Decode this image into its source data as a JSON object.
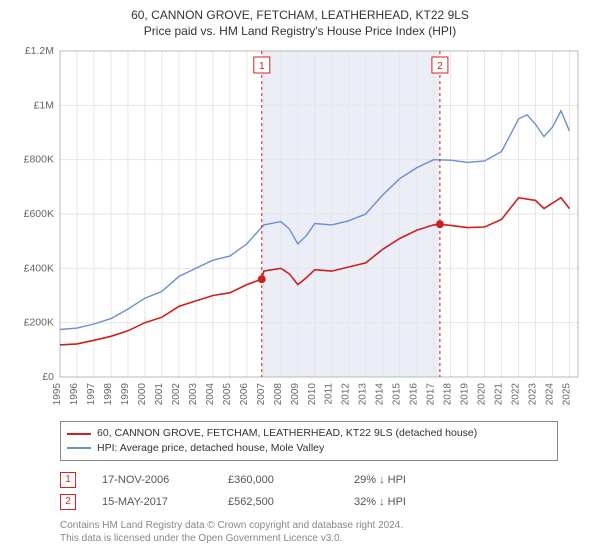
{
  "title": "60, CANNON GROVE, FETCHAM, LEATHERHEAD, KT22 9LS",
  "subtitle": "Price paid vs. HM Land Registry's House Price Index (HPI)",
  "chart": {
    "type": "line",
    "background_color": "#ffffff",
    "grid_color": "#e6e6e6",
    "axis_color": "#b8b8b8",
    "highlight_band_color": "#ebedf7",
    "highlight_start_year": 2006.9,
    "highlight_end_year": 2017.35,
    "ylim": [
      0,
      1200000
    ],
    "ytick_step": 200000,
    "ytick_labels": [
      "£0",
      "£200K",
      "£400K",
      "£600K",
      "£800K",
      "£1M",
      "£1.2M"
    ],
    "xlim": [
      1995,
      2025.5
    ],
    "xticks": [
      1995,
      1996,
      1997,
      1998,
      1999,
      2000,
      2001,
      2002,
      2003,
      2004,
      2005,
      2006,
      2007,
      2008,
      2009,
      2010,
      2011,
      2012,
      2013,
      2014,
      2015,
      2016,
      2017,
      2018,
      2019,
      2020,
      2021,
      2022,
      2023,
      2024,
      2025
    ],
    "label_fontsize": 10.5,
    "series": [
      {
        "name": "property",
        "color": "#d01f1f",
        "width": 1.6,
        "legend": "60, CANNON GROVE, FETCHAM, LEATHERHEAD, KT22 9LS (detached house)",
        "points": [
          [
            1995,
            118000
          ],
          [
            1996,
            122000
          ],
          [
            1997,
            135000
          ],
          [
            1998,
            150000
          ],
          [
            1999,
            170000
          ],
          [
            2000,
            200000
          ],
          [
            2001,
            220000
          ],
          [
            2002,
            260000
          ],
          [
            2003,
            280000
          ],
          [
            2004,
            300000
          ],
          [
            2005,
            310000
          ],
          [
            2006,
            340000
          ],
          [
            2006.88,
            360000
          ],
          [
            2007,
            390000
          ],
          [
            2008,
            400000
          ],
          [
            2008.5,
            380000
          ],
          [
            2009,
            340000
          ],
          [
            2009.5,
            365000
          ],
          [
            2010,
            395000
          ],
          [
            2011,
            390000
          ],
          [
            2012,
            405000
          ],
          [
            2013,
            420000
          ],
          [
            2014,
            470000
          ],
          [
            2015,
            510000
          ],
          [
            2016,
            540000
          ],
          [
            2017,
            560000
          ],
          [
            2017.37,
            562500
          ],
          [
            2018,
            558000
          ],
          [
            2019,
            550000
          ],
          [
            2020,
            552000
          ],
          [
            2021,
            580000
          ],
          [
            2022,
            660000
          ],
          [
            2023,
            650000
          ],
          [
            2023.5,
            620000
          ],
          [
            2024,
            640000
          ],
          [
            2024.5,
            660000
          ],
          [
            2025,
            620000
          ]
        ]
      },
      {
        "name": "hpi",
        "color": "#6b8fd4",
        "width": 1.4,
        "legend": "HPI: Average price, detached house, Mole Valley",
        "points": [
          [
            1995,
            175000
          ],
          [
            1996,
            180000
          ],
          [
            1997,
            195000
          ],
          [
            1998,
            215000
          ],
          [
            1999,
            250000
          ],
          [
            2000,
            290000
          ],
          [
            2001,
            315000
          ],
          [
            2002,
            370000
          ],
          [
            2003,
            400000
          ],
          [
            2004,
            430000
          ],
          [
            2005,
            445000
          ],
          [
            2006,
            490000
          ],
          [
            2007,
            560000
          ],
          [
            2008,
            572000
          ],
          [
            2008.5,
            545000
          ],
          [
            2009,
            490000
          ],
          [
            2009.5,
            520000
          ],
          [
            2010,
            565000
          ],
          [
            2011,
            560000
          ],
          [
            2012,
            575000
          ],
          [
            2013,
            600000
          ],
          [
            2014,
            670000
          ],
          [
            2015,
            730000
          ],
          [
            2016,
            770000
          ],
          [
            2017,
            800000
          ],
          [
            2018,
            798000
          ],
          [
            2019,
            790000
          ],
          [
            2020,
            795000
          ],
          [
            2021,
            830000
          ],
          [
            2022,
            950000
          ],
          [
            2022.5,
            965000
          ],
          [
            2023,
            930000
          ],
          [
            2023.5,
            885000
          ],
          [
            2024,
            920000
          ],
          [
            2024.5,
            980000
          ],
          [
            2025,
            905000
          ]
        ]
      }
    ],
    "markers": [
      {
        "n": "1",
        "year": 2006.88,
        "price": 360000
      },
      {
        "n": "2",
        "year": 2017.37,
        "price": 562500
      }
    ]
  },
  "marker_table": {
    "rows": [
      {
        "n": "1",
        "date": "17-NOV-2006",
        "price": "£360,000",
        "delta": "29% ↓ HPI"
      },
      {
        "n": "2",
        "date": "15-MAY-2017",
        "price": "£562,500",
        "delta": "32% ↓ HPI"
      }
    ]
  },
  "footer": {
    "line1": "Contains HM Land Registry data © Crown copyright and database right 2024.",
    "line2": "This data is licensed under the Open Government Licence v3.0."
  }
}
